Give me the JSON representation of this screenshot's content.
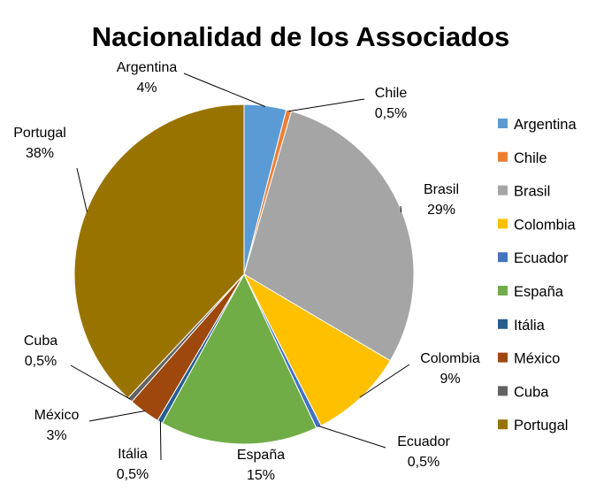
{
  "chart_data": {
    "type": "pie",
    "title": "Nacionalidad de los Associados",
    "categories": [
      "Argentina",
      "Chile",
      "Brasil",
      "Colombia",
      "Ecuador",
      "España",
      "Itália",
      "México",
      "Cuba",
      "Portugal"
    ],
    "values": [
      4,
      0.5,
      29,
      9,
      0.5,
      15,
      0.5,
      3,
      0.5,
      38
    ],
    "value_labels": [
      "4%",
      "0,5%",
      "29%",
      "9%",
      "0,5%",
      "15%",
      "0,5%",
      "3%",
      "0,5%",
      "38%"
    ],
    "colors": [
      "#5B9BD5",
      "#ED7D31",
      "#A5A5A5",
      "#FFC000",
      "#4472C4",
      "#70AD47",
      "#255E91",
      "#9E480E",
      "#636363",
      "#997300"
    ],
    "legend_position": "right",
    "data_labels": "outside-with-leader-lines"
  }
}
